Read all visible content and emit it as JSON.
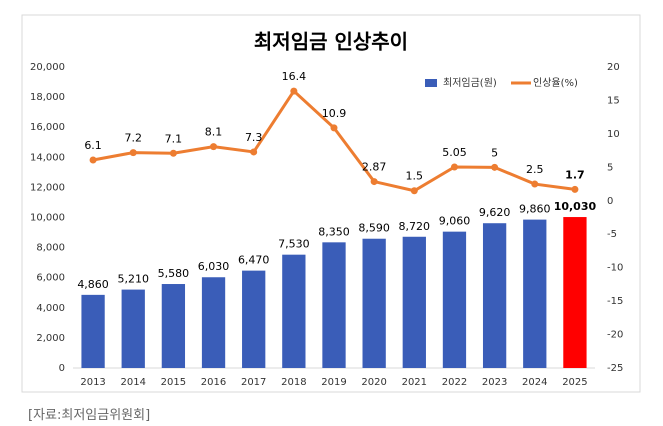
{
  "chart_data": {
    "type": "bar-line",
    "title": "최저임금 인상추이",
    "categories": [
      "2013",
      "2014",
      "2015",
      "2016",
      "2017",
      "2018",
      "2019",
      "2020",
      "2021",
      "2022",
      "2023",
      "2024",
      "2025"
    ],
    "series": [
      {
        "name": "최저임금(원)",
        "type": "bar",
        "color": "#3a5db8",
        "colors": [
          "#3a5db8",
          "#3a5db8",
          "#3a5db8",
          "#3a5db8",
          "#3a5db8",
          "#3a5db8",
          "#3a5db8",
          "#3a5db8",
          "#3a5db8",
          "#3a5db8",
          "#3a5db8",
          "#3a5db8",
          "#ff0000"
        ],
        "values": [
          4860,
          5210,
          5580,
          6030,
          6470,
          7530,
          8350,
          8590,
          8720,
          9060,
          9620,
          9860,
          10030
        ],
        "value_labels": [
          "4,860",
          "5,210",
          "5,580",
          "6,030",
          "6,470",
          "7,530",
          "8,350",
          "8,590",
          "8,720",
          "9,060",
          "9,620",
          "9,860",
          "10,030"
        ]
      },
      {
        "name": "인상율(%)",
        "type": "line",
        "color": "#ed7d31",
        "axis": "y2",
        "values": [
          6.1,
          7.2,
          7.1,
          8.1,
          7.3,
          16.4,
          10.9,
          2.87,
          1.5,
          5.05,
          5,
          2.5,
          1.7
        ]
      }
    ],
    "ylim": [
      0,
      20000
    ],
    "yticks": [
      0,
      {
        "value": 2000,
        "label": "2,000"
      },
      {
        "value": 4000,
        "label": "4,000"
      },
      {
        "value": 6000,
        "label": "6,000"
      },
      {
        "value": 8000,
        "label": "8,000"
      },
      {
        "value": 10000,
        "label": "10,000"
      },
      {
        "value": 12000,
        "label": "12,000"
      },
      {
        "value": 14000,
        "label": "14,000"
      },
      {
        "value": 16000,
        "label": "16,000"
      },
      {
        "value": 18000,
        "label": "18,000"
      },
      {
        "value": 20000,
        "label": "20,000"
      }
    ],
    "y2lim": [
      -25,
      20
    ],
    "y2ticks": [
      -25,
      -20,
      -15,
      -10,
      -5,
      0,
      5,
      10,
      15,
      20
    ],
    "legend": "top-right",
    "source": "[자료:최저임금위원회]"
  }
}
